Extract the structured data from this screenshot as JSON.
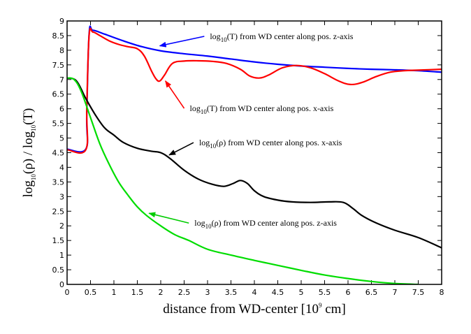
{
  "chart_data": {
    "type": "line",
    "xlabel": "distance from WD-center [10",
    "xlabel_sup": "9",
    "xlabel_tail": " cm]",
    "ylabel_parts": [
      "log",
      "10",
      "(ρ) / log",
      "10",
      "(T)"
    ],
    "xlim": [
      0,
      8
    ],
    "ylim": [
      0,
      9
    ],
    "x_ticks": [
      0,
      0.5,
      1,
      1.5,
      2,
      2.5,
      3,
      3.5,
      4,
      4.5,
      5,
      5.5,
      6,
      6.5,
      7,
      7.5,
      8
    ],
    "x_tick_labels": [
      "0",
      "0.5",
      "1",
      "1.5",
      "2",
      "2.5",
      "3",
      "3.5",
      "4",
      "4.5",
      "5",
      "5.5",
      "6",
      "6.5",
      "7",
      "7.5",
      "8"
    ],
    "y_ticks": [
      0,
      0.5,
      1,
      1.5,
      2,
      2.5,
      3,
      3.5,
      4,
      4.5,
      5,
      5.5,
      6,
      6.5,
      7,
      7.5,
      8,
      8.5,
      9
    ],
    "y_tick_labels": [
      "0",
      "0.5",
      "1",
      "1.5",
      "2",
      "2.5",
      "3",
      "3.5",
      "4",
      "4.5",
      "5",
      "5.5",
      "6",
      "6.5",
      "7",
      "7.5",
      "8",
      "8.5",
      "9"
    ],
    "series": [
      {
        "name": "log10(T) from WD center along pos. z-axis",
        "color": "#0000ff",
        "x": [
          0,
          0.4,
          0.42,
          0.47,
          0.55,
          0.8,
          1.2,
          1.6,
          2.0,
          2.5,
          3.0,
          3.5,
          4.0,
          4.5,
          5.0,
          5.5,
          6.0,
          6.5,
          7.0,
          7.5,
          8.0
        ],
        "y": [
          4.62,
          4.62,
          5.8,
          8.55,
          8.68,
          8.55,
          8.32,
          8.12,
          7.98,
          7.88,
          7.8,
          7.7,
          7.6,
          7.52,
          7.46,
          7.42,
          7.38,
          7.35,
          7.33,
          7.3,
          7.25
        ]
      },
      {
        "name": "log10(T) from WD center along pos. x-axis",
        "color": "#ff0000",
        "x": [
          0,
          0.4,
          0.42,
          0.47,
          0.55,
          0.7,
          0.9,
          1.1,
          1.3,
          1.5,
          1.65,
          1.8,
          1.9,
          1.98,
          2.08,
          2.25,
          2.5,
          2.8,
          3.1,
          3.4,
          3.7,
          3.9,
          4.1,
          4.3,
          4.6,
          4.9,
          5.2,
          5.5,
          5.8,
          6.05,
          6.3,
          6.6,
          6.9,
          7.2,
          7.5,
          8.0
        ],
        "y": [
          4.6,
          4.6,
          6.0,
          8.5,
          8.62,
          8.5,
          8.32,
          8.2,
          8.12,
          8.05,
          7.8,
          7.3,
          7.02,
          6.95,
          7.15,
          7.55,
          7.63,
          7.64,
          7.62,
          7.55,
          7.35,
          7.12,
          7.05,
          7.15,
          7.4,
          7.48,
          7.4,
          7.2,
          6.95,
          6.83,
          6.9,
          7.1,
          7.25,
          7.3,
          7.32,
          7.35
        ]
      },
      {
        "name": "log10(ρ) from WD center along pos. x-axis",
        "color": "#000000",
        "x": [
          0,
          0.2,
          0.4,
          0.6,
          0.8,
          1.0,
          1.2,
          1.5,
          1.8,
          2.0,
          2.2,
          2.5,
          2.8,
          3.1,
          3.35,
          3.55,
          3.7,
          3.85,
          4.0,
          4.2,
          4.5,
          4.8,
          5.2,
          5.6,
          5.9,
          6.1,
          6.3,
          6.6,
          7.0,
          7.5,
          8.0
        ],
        "y": [
          7.05,
          6.95,
          6.35,
          5.8,
          5.35,
          5.1,
          4.85,
          4.65,
          4.55,
          4.5,
          4.3,
          3.9,
          3.6,
          3.42,
          3.35,
          3.45,
          3.55,
          3.45,
          3.2,
          3.0,
          2.88,
          2.82,
          2.8,
          2.82,
          2.8,
          2.6,
          2.35,
          2.1,
          1.85,
          1.6,
          1.25
        ]
      },
      {
        "name": "log10(ρ) from WD center along pos. z-axis",
        "color": "#00dd00",
        "x": [
          0,
          0.15,
          0.3,
          0.5,
          0.7,
          0.9,
          1.1,
          1.3,
          1.5,
          1.7,
          2.0,
          2.3,
          2.6,
          3.0,
          3.5,
          4.0,
          4.5,
          5.0,
          5.5,
          6.0,
          6.5,
          7.0,
          7.5
        ],
        "y": [
          7.05,
          7.0,
          6.6,
          5.7,
          4.8,
          4.1,
          3.5,
          3.05,
          2.65,
          2.35,
          2.0,
          1.7,
          1.5,
          1.2,
          1.0,
          0.82,
          0.65,
          0.48,
          0.32,
          0.2,
          0.1,
          0.03,
          0.0
        ]
      }
    ],
    "annotations": [
      {
        "pre": "log",
        "sub": "10",
        "post": "(T) from WD center along pos. z-axis",
        "target": [
          1.98,
          8.15
        ],
        "text_at": [
          3.05,
          8.38
        ],
        "anchor": "start"
      },
      {
        "pre": "log",
        "sub": "10",
        "post": "(T) from WD center along pos. x-axis",
        "target": [
          2.1,
          6.95
        ],
        "text_at": [
          2.62,
          5.92
        ],
        "anchor": "start"
      },
      {
        "pre": "log",
        "sub": "10",
        "post": "(ρ) from WD center along pos. x-axis",
        "target": [
          2.18,
          4.42
        ],
        "text_at": [
          2.82,
          4.75
        ],
        "anchor": "start"
      },
      {
        "pre": "log",
        "sub": "10",
        "post": "(ρ) from WD center along pos. z-axis",
        "target": [
          1.75,
          2.43
        ],
        "text_at": [
          2.72,
          2.0
        ],
        "anchor": "start"
      }
    ]
  }
}
